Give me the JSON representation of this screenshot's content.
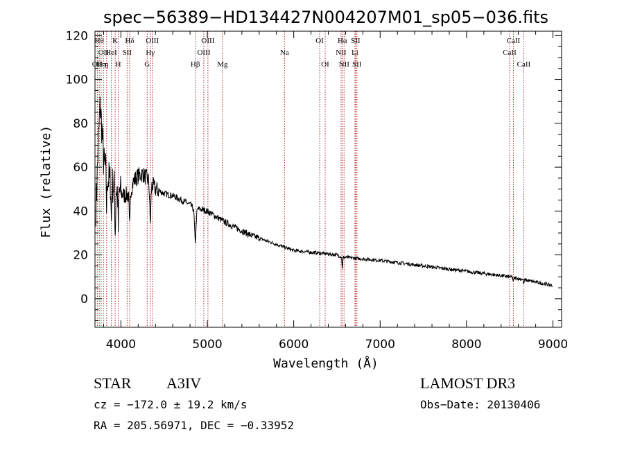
{
  "chart_data": {
    "type": "line",
    "title": "spec−56389−HD134427N004207M01_sp05−036.fits",
    "xlabel": "Wavelength (Å)",
    "ylabel": "Flux (relative)",
    "xlim": [
      3700,
      9100
    ],
    "ylim": [
      -13,
      122
    ],
    "xticks": [
      4000,
      5000,
      6000,
      7000,
      8000,
      9000
    ],
    "yticks": [
      0,
      20,
      40,
      60,
      80,
      100,
      120
    ],
    "series": [
      {
        "name": "flux",
        "color": "#000000",
        "anchors_x": [
          3700,
          3720,
          3740,
          3760,
          3780,
          3800,
          3850,
          3900,
          3950,
          4000,
          4050,
          4100,
          4150,
          4200,
          4250,
          4300,
          4340,
          4400,
          4500,
          4600,
          4700,
          4800,
          4861,
          4900,
          5000,
          5200,
          5500,
          6000,
          6500,
          6563,
          7000,
          7500,
          8000,
          8500,
          9000
        ],
        "anchors_y": [
          34,
          50,
          72,
          88,
          78,
          62,
          55,
          52,
          50,
          48,
          47,
          48,
          54,
          56,
          57,
          55,
          53,
          50,
          48,
          47,
          45,
          43,
          40,
          41,
          40,
          35,
          29,
          22,
          20,
          19,
          17.5,
          15,
          12.5,
          10,
          6
        ],
        "features": [
          {
            "x": 4861,
            "depth": 14,
            "width": 12
          },
          {
            "x": 4340,
            "depth": 18,
            "width": 10
          },
          {
            "x": 4101,
            "depth": 16,
            "width": 8
          },
          {
            "x": 3970,
            "depth": 18,
            "width": 6
          },
          {
            "x": 3934,
            "depth": 20,
            "width": 6
          },
          {
            "x": 3889,
            "depth": 18,
            "width": 5
          },
          {
            "x": 3835,
            "depth": 16,
            "width": 5
          },
          {
            "x": 6563,
            "depth": 5,
            "width": 6
          },
          {
            "x": 8542,
            "depth": 2,
            "width": 6
          },
          {
            "x": 8662,
            "depth": 2,
            "width": 6
          }
        ]
      }
    ],
    "lines": [
      {
        "x": 3727,
        "label": "OII",
        "row": 3
      },
      {
        "x": 3750,
        "label": "Hθ",
        "row": 1
      },
      {
        "x": 3771,
        "label": "Hη",
        "row": 3
      },
      {
        "x": 3798,
        "label": "OII",
        "row": 2
      },
      {
        "x": 3835,
        "label": "η",
        "row": 3
      },
      {
        "x": 3889,
        "label": "HeI",
        "row": 2
      },
      {
        "x": 3934,
        "label": "K",
        "row": 1
      },
      {
        "x": 3970,
        "label": "H",
        "row": 3
      },
      {
        "x": 4072,
        "label": "SII",
        "row": 2
      },
      {
        "x": 4101,
        "label": "Hδ",
        "row": 1
      },
      {
        "x": 4304,
        "label": "G",
        "row": 3
      },
      {
        "x": 4340,
        "label": "Hγ",
        "row": 2
      },
      {
        "x": 4363,
        "label": "OIII",
        "row": 1
      },
      {
        "x": 4861,
        "label": "Hβ",
        "row": 3
      },
      {
        "x": 4959,
        "label": "OIII",
        "row": 2
      },
      {
        "x": 5007,
        "label": "OIII",
        "row": 1
      },
      {
        "x": 5175,
        "label": "Mg",
        "row": 3
      },
      {
        "x": 5893,
        "label": "Na",
        "row": 2
      },
      {
        "x": 6300,
        "label": "OI",
        "row": 1
      },
      {
        "x": 6364,
        "label": "OI",
        "row": 3
      },
      {
        "x": 6548,
        "label": "NII",
        "row": 2
      },
      {
        "x": 6563,
        "label": "Hα",
        "row": 1
      },
      {
        "x": 6583,
        "label": "NII",
        "row": 3
      },
      {
        "x": 6708,
        "label": "Li",
        "row": 2
      },
      {
        "x": 6716,
        "label": "SII",
        "row": 1
      },
      {
        "x": 6731,
        "label": "SII",
        "row": 3
      },
      {
        "x": 8498,
        "label": "CaII",
        "row": 2
      },
      {
        "x": 8542,
        "label": "CaII",
        "row": 1
      },
      {
        "x": 8662,
        "label": "CaII",
        "row": 3
      }
    ]
  },
  "info": {
    "class_label": "STAR",
    "subclass": "A3IV",
    "survey": "LAMOST DR3",
    "velocity": "cz = −172.0 ± 19.2 km/s",
    "obs_date": "Obs−Date: 20130406",
    "coords": "RA = 205.56971, DEC =  −0.33952"
  },
  "colors": {
    "spectrum": "#000000",
    "marker_lines": "#b22222",
    "axes": "#000000",
    "background": "#ffffff"
  }
}
